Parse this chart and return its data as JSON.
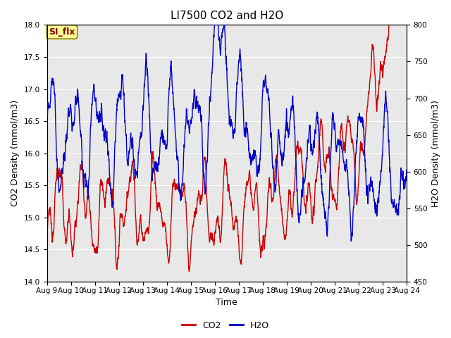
{
  "title": "LI7500 CO2 and H2O",
  "xlabel": "Time",
  "ylabel_left": "CO2 Density (mmol/m3)",
  "ylabel_right": "H2O Density (mmol/m3)",
  "co2_color": "#CC0000",
  "h2o_color": "#0000CC",
  "ylim_left": [
    14.0,
    18.0
  ],
  "ylim_right": [
    450,
    800
  ],
  "xtick_labels": [
    "Aug 9",
    "Aug 10",
    "Aug 11",
    "Aug 12",
    "Aug 13",
    "Aug 14",
    "Aug 15",
    "Aug 16",
    "Aug 17",
    "Aug 18",
    "Aug 19",
    "Aug 20",
    "Aug 21",
    "Aug 22",
    "Aug 23",
    "Aug 24"
  ],
  "annotation_text": "SI_flx",
  "annotation_facecolor": "#FFFF99",
  "annotation_edgecolor": "#888800",
  "annotation_textcolor": "#880000",
  "plot_bg_color": "#E8E8E8",
  "fig_bg_color": "#FFFFFF",
  "grid_color": "#FFFFFF",
  "title_fontsize": 11,
  "label_fontsize": 9,
  "tick_fontsize": 7.5,
  "line_width": 1.0,
  "legend_fontsize": 9
}
